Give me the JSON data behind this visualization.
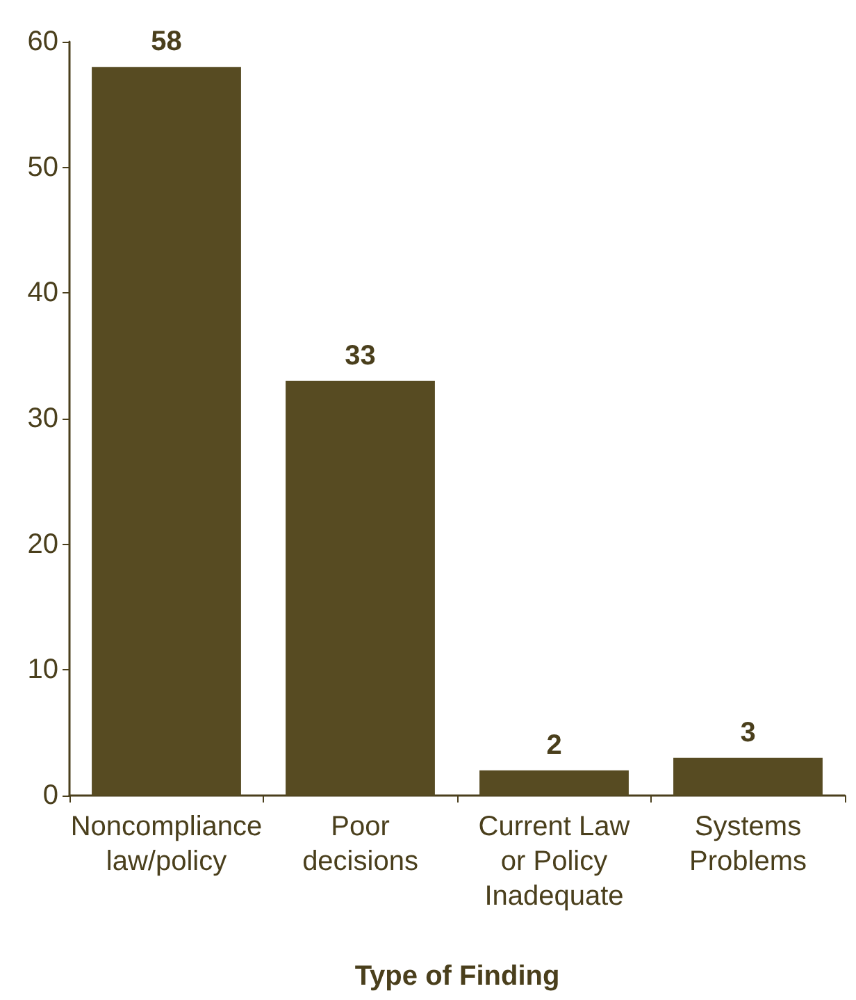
{
  "chart_data": {
    "type": "bar",
    "xlabel": "Type of Finding",
    "categories": [
      "Noncompliance\nlaw/policy",
      "Poor\ndecisions",
      "Current Law\nor Policy\nInadequate",
      "Systems\nProblems"
    ],
    "values": [
      58,
      33,
      2,
      3
    ],
    "color": "#574b22",
    "ylim": [
      0,
      60
    ],
    "yticks": [
      0,
      10,
      20,
      30,
      40,
      50,
      60
    ],
    "grid": false,
    "data_labels": true
  }
}
